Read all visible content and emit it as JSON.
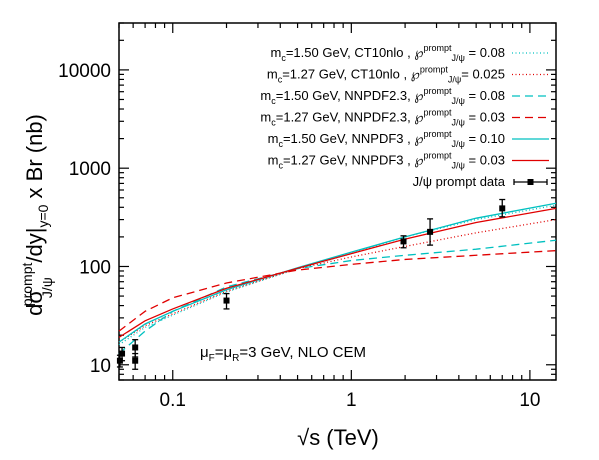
{
  "chart_data": {
    "type": "line",
    "xscale": "log",
    "yscale": "log",
    "xlim": [
      0.05,
      14
    ],
    "ylim": [
      7,
      30000
    ],
    "x_ticks": [
      0.1,
      1,
      10
    ],
    "x_tick_labels": [
      "0.1",
      "1",
      "10"
    ],
    "y_ticks": [
      10,
      100,
      1000,
      10000
    ],
    "y_tick_labels": [
      "10",
      "100",
      "1000",
      "10000"
    ],
    "xlabel": "√s (TeV)",
    "ylabel": "dσ^prompt_J/ψ/dy|y=0 x Br (nb)",
    "annotation": "μF=μR=3 GeV, NLO CEM",
    "legend_position": "top-right",
    "grid": false,
    "series": [
      {
        "name": "mc=1.50 GeV, CT10nlo  , ℘prompt J/ψ = 0.08",
        "label_text": "m<sub>c</sub>=1.50 GeV, CT10nlo , ℘<sup>prompt</sup><sub>J/ψ</sub> = 0.08",
        "color": "#00c0c0",
        "dash": "1,2.5",
        "x": [
          0.05,
          0.07,
          0.1,
          0.2,
          0.5,
          1,
          2,
          5,
          14
        ],
        "y": [
          16,
          24,
          32,
          55,
          95,
          135,
          200,
          300,
          420
        ]
      },
      {
        "name": "mc=1.27 GeV, CT10nlo  , ℘prompt J/ψ = 0.025",
        "label_text": "m<sub>c</sub>=1.27 GeV, CT10nlo , ℘<sup>prompt</sup><sub>J/ψ</sub>= 0.025",
        "color": "#e00000",
        "dash": "1,2.5",
        "x": [
          0.05,
          0.07,
          0.1,
          0.2,
          0.5,
          1,
          2,
          5,
          14
        ],
        "y": [
          17,
          25,
          33,
          56,
          95,
          125,
          160,
          220,
          300
        ]
      },
      {
        "name": "mc=1.50 GeV, NNPDF2.3, ℘prompt J/ψ = 0.08",
        "label_text": "m<sub>c</sub>=1.50 GeV, NNPDF2.3, ℘<sup>prompt</sup><sub>J/ψ</sub> = 0.08",
        "color": "#00c0c0",
        "dash": "8,5",
        "x": [
          0.05,
          0.07,
          0.1,
          0.2,
          0.5,
          1,
          2,
          5,
          14
        ],
        "y": [
          13,
          22,
          35,
          62,
          95,
          115,
          130,
          150,
          185
        ]
      },
      {
        "name": "mc=1.27 GeV, NNPDF2.3, ℘prompt J/ψ = 0.03",
        "label_text": "m<sub>c</sub>=1.27 GeV, NNPDF2.3, ℘<sup>prompt</sup><sub>J/ψ</sub> = 0.03",
        "color": "#e00000",
        "dash": "8,5",
        "x": [
          0.05,
          0.07,
          0.1,
          0.2,
          0.5,
          1,
          2,
          5,
          14
        ],
        "y": [
          22,
          35,
          48,
          68,
          92,
          105,
          118,
          130,
          145
        ]
      },
      {
        "name": "mc=1.50 GeV, NNPDF3  , ℘prompt J/ψ = 0.10",
        "label_text": "m<sub>c</sub>=1.50 GeV, NNPDF3 , ℘<sup>prompt</sup><sub>J/ψ</sub> = 0.10",
        "color": "#00c0c0",
        "dash": "",
        "x": [
          0.05,
          0.07,
          0.1,
          0.2,
          0.5,
          1,
          2,
          5,
          14
        ],
        "y": [
          17,
          26,
          35,
          58,
          97,
          140,
          200,
          310,
          440
        ]
      },
      {
        "name": "mc=1.27 GeV, NNPDF3  , ℘prompt J/ψ = 0.03",
        "label_text": "m<sub>c</sub>=1.27 GeV, NNPDF3 , ℘<sup>prompt</sup><sub>J/ψ</sub> = 0.03",
        "color": "#e00000",
        "dash": "",
        "x": [
          0.05,
          0.07,
          0.1,
          0.2,
          0.5,
          1,
          2,
          5,
          14
        ],
        "y": [
          19,
          28,
          37,
          60,
          96,
          135,
          190,
          280,
          390
        ]
      }
    ],
    "data_points": {
      "name": "J/ψ prompt data",
      "points": [
        {
          "x": 0.0506,
          "y": 11,
          "yerr_low": 1.5,
          "yerr_high": 1.5
        },
        {
          "x": 0.052,
          "y": 13,
          "yerr_low": 2,
          "yerr_high": 2
        },
        {
          "x": 0.0616,
          "y": 11,
          "yerr_low": 2,
          "yerr_high": 2
        },
        {
          "x": 0.0616,
          "y": 15,
          "yerr_low": 3,
          "yerr_high": 3
        },
        {
          "x": 0.2,
          "y": 45,
          "yerr_low": 8,
          "yerr_high": 8
        },
        {
          "x": 1.96,
          "y": 180,
          "yerr_low": 25,
          "yerr_high": 25
        },
        {
          "x": 2.76,
          "y": 225,
          "yerr_low": 60,
          "yerr_high": 80
        },
        {
          "x": 7,
          "y": 390,
          "yerr_low": 70,
          "yerr_high": 90
        }
      ]
    }
  }
}
